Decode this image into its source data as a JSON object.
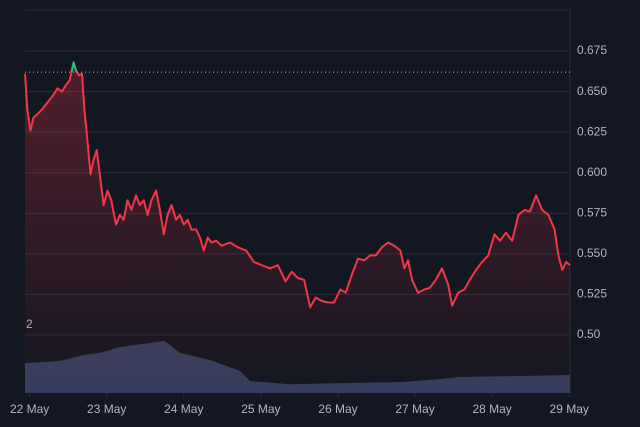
{
  "chart_data": {
    "type": "line",
    "x": [
      -0.06,
      -0.03,
      0.01,
      0.05,
      0.1,
      0.16,
      0.21,
      0.26,
      0.31,
      0.36,
      0.42,
      0.47,
      0.52,
      0.57,
      0.6,
      0.64,
      0.68,
      0.71,
      0.75,
      0.79,
      0.83,
      0.87,
      0.91,
      0.96,
      1.01,
      1.06,
      1.12,
      1.17,
      1.22,
      1.27,
      1.32,
      1.38,
      1.43,
      1.48,
      1.53,
      1.58,
      1.64,
      1.69,
      1.74,
      1.79,
      1.84,
      1.9,
      1.95,
      2.0,
      2.05,
      2.1,
      2.16,
      2.21,
      2.26,
      2.31,
      2.36,
      2.42,
      2.49,
      2.6,
      2.7,
      2.81,
      2.91,
      3.01,
      3.12,
      3.22,
      3.32,
      3.4,
      3.48,
      3.56,
      3.64,
      3.71,
      3.79,
      3.87,
      3.95,
      4.03,
      4.1,
      4.18,
      4.26,
      4.34,
      4.42,
      4.49,
      4.57,
      4.65,
      4.73,
      4.81,
      4.86,
      4.91,
      4.96,
      5.04,
      5.12,
      5.19,
      5.27,
      5.35,
      5.43,
      5.48,
      5.56,
      5.64,
      5.71,
      5.79,
      5.87,
      5.95,
      6.03,
      6.1,
      6.18,
      6.26,
      6.34,
      6.42,
      6.49,
      6.57,
      6.65,
      6.73,
      6.81,
      6.86,
      6.91,
      6.96,
      7.01
    ],
    "series": [
      {
        "color": "#f23645",
        "above_color": "#2ebd85",
        "values": [
          0.661,
          0.639,
          0.626,
          0.634,
          0.636,
          0.639,
          0.642,
          0.645,
          0.648,
          0.652,
          0.65,
          0.654,
          0.657,
          0.668,
          0.663,
          0.66,
          0.661,
          0.639,
          0.62,
          0.599,
          0.608,
          0.614,
          0.599,
          0.58,
          0.589,
          0.583,
          0.568,
          0.574,
          0.571,
          0.583,
          0.577,
          0.586,
          0.58,
          0.583,
          0.574,
          0.583,
          0.589,
          0.577,
          0.562,
          0.574,
          0.58,
          0.571,
          0.574,
          0.568,
          0.571,
          0.565,
          0.565,
          0.56,
          0.552,
          0.56,
          0.557,
          0.558,
          0.555,
          0.557,
          0.554,
          0.552,
          0.545,
          0.543,
          0.541,
          0.543,
          0.533,
          0.539,
          0.535,
          0.534,
          0.517,
          0.523,
          0.521,
          0.52,
          0.52,
          0.528,
          0.526,
          0.537,
          0.547,
          0.546,
          0.549,
          0.549,
          0.554,
          0.557,
          0.555,
          0.552,
          0.541,
          0.546,
          0.534,
          0.526,
          0.528,
          0.529,
          0.534,
          0.541,
          0.531,
          0.518,
          0.526,
          0.528,
          0.534,
          0.54,
          0.545,
          0.549,
          0.562,
          0.558,
          0.563,
          0.558,
          0.574,
          0.577,
          0.576,
          0.586,
          0.577,
          0.574,
          0.565,
          0.549,
          0.54,
          0.545,
          0.543
        ]
      }
    ],
    "baseline": 0.662,
    "xlim": [
      -0.06,
      7.01
    ],
    "xticks": [
      {
        "value": 0,
        "label": "22 May"
      },
      {
        "value": 1,
        "label": "23 May"
      },
      {
        "value": 2,
        "label": "24 May"
      },
      {
        "value": 3,
        "label": "25 May"
      },
      {
        "value": 4,
        "label": "26 May"
      },
      {
        "value": 5,
        "label": "27 May"
      },
      {
        "value": 6,
        "label": "28 May"
      },
      {
        "value": 7,
        "label": "29 May"
      }
    ],
    "ylim": [
      0.4642,
      0.7003
    ],
    "yticks": [
      0.675,
      {
        "value": 0.65,
        "label": "0.650"
      },
      0.625,
      {
        "value": 0.6,
        "label": "0.600"
      },
      0.575,
      {
        "value": 0.55,
        "label": "0.550"
      },
      0.525,
      {
        "value": 0.5,
        "label": "0.50"
      }
    ],
    "grid": true,
    "volume": {
      "color": "#363d5c",
      "ylim": [
        0,
        2
      ],
      "yticks": [
        2
      ],
      "x": [
        -0.06,
        0.39,
        0.71,
        0.91,
        1.17,
        1.56,
        1.75,
        1.95,
        2.34,
        2.73,
        2.86,
        3.38,
        4.03,
        4.81,
        5.32,
        5.58,
        6.36,
        7.01
      ],
      "values": [
        0.88,
        0.94,
        1.12,
        1.18,
        1.35,
        1.47,
        1.53,
        1.18,
        0.97,
        0.65,
        0.35,
        0.26,
        0.29,
        0.32,
        0.41,
        0.47,
        0.5,
        0.53
      ]
    }
  }
}
